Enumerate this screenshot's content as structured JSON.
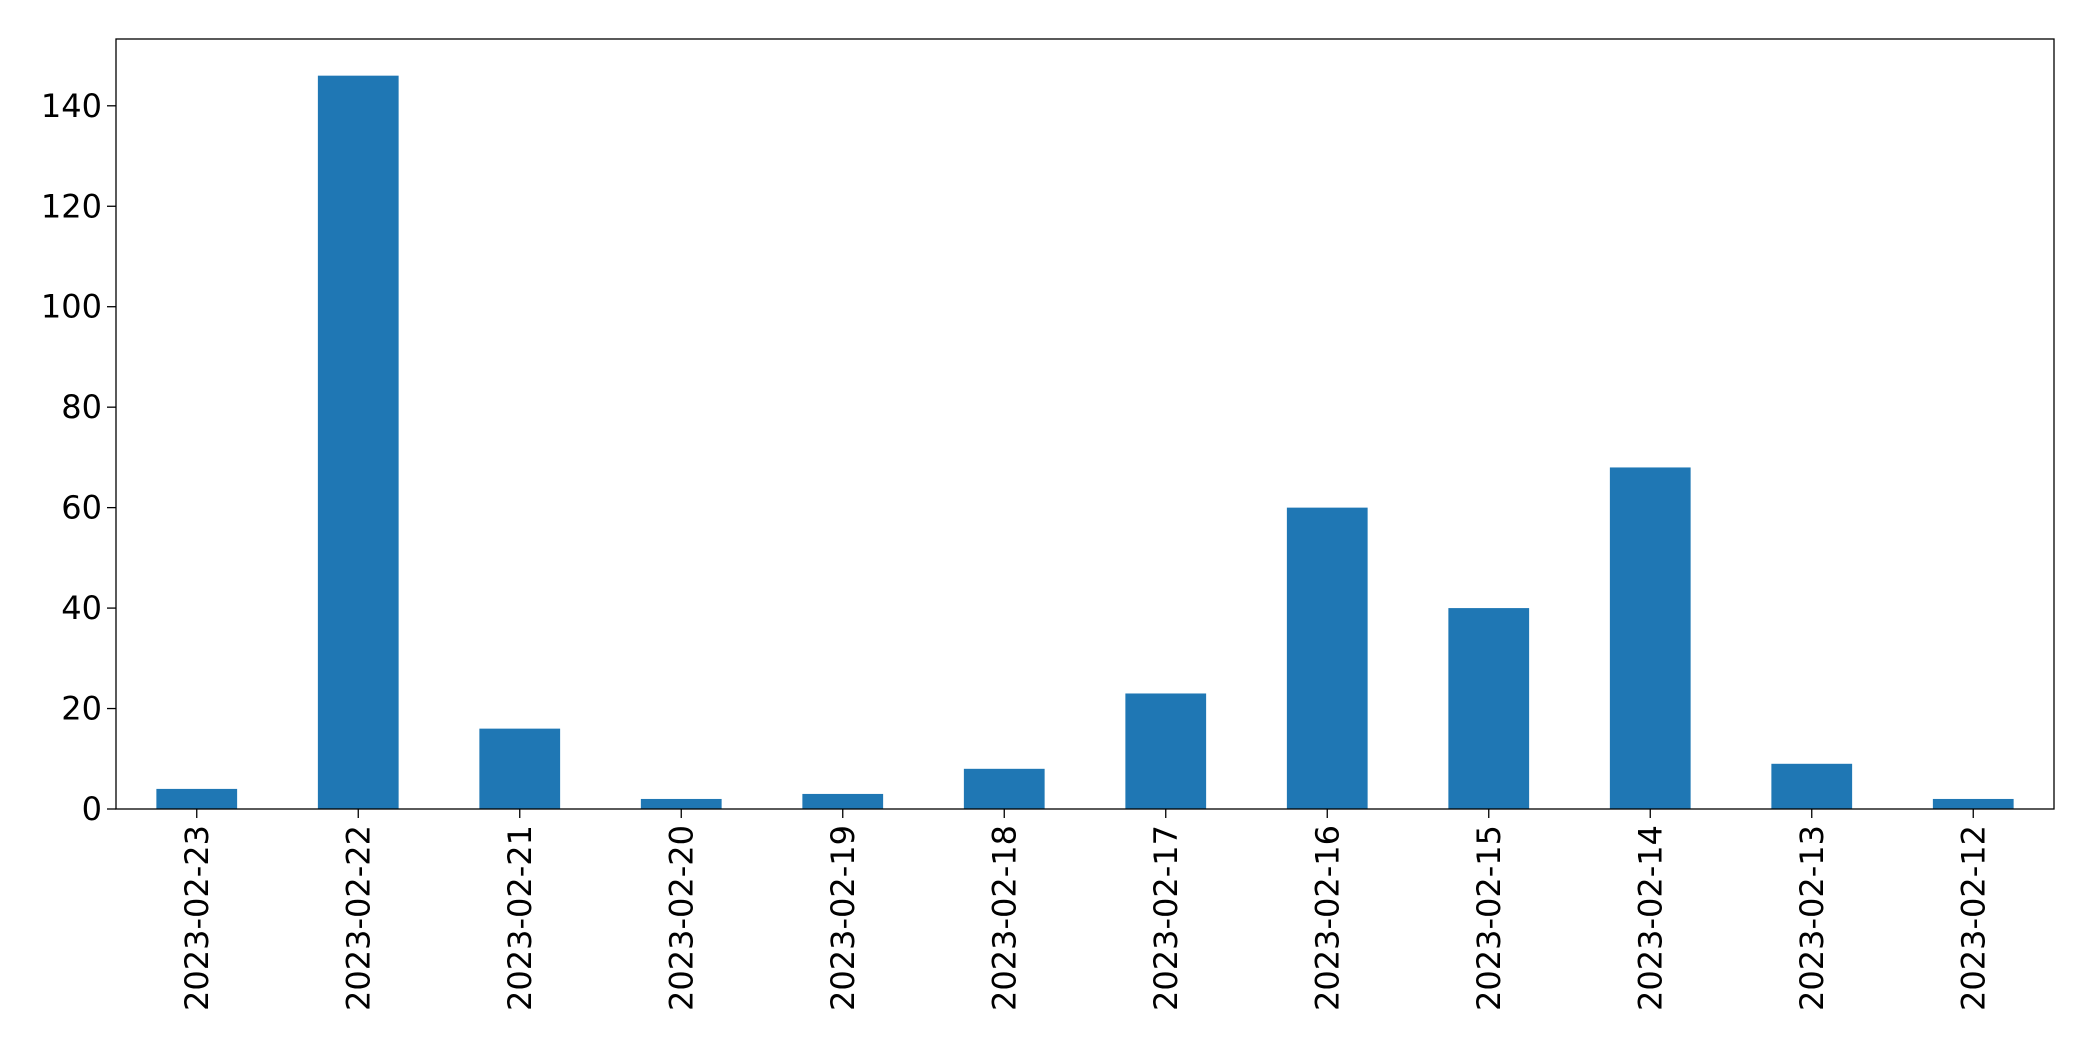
{
  "chart_data": {
    "type": "bar",
    "categories": [
      "2023-02-23",
      "2023-02-22",
      "2023-02-21",
      "2023-02-20",
      "2023-02-19",
      "2023-02-18",
      "2023-02-17",
      "2023-02-16",
      "2023-02-15",
      "2023-02-14",
      "2023-02-13",
      "2023-02-12"
    ],
    "values": [
      4,
      146,
      16,
      2,
      3,
      8,
      23,
      60,
      40,
      68,
      9,
      2
    ],
    "color": "#1f77b4",
    "ylim": [
      0,
      153.3
    ],
    "yticks": [
      0,
      20,
      40,
      60,
      80,
      100,
      120,
      140
    ],
    "grid": false
  }
}
